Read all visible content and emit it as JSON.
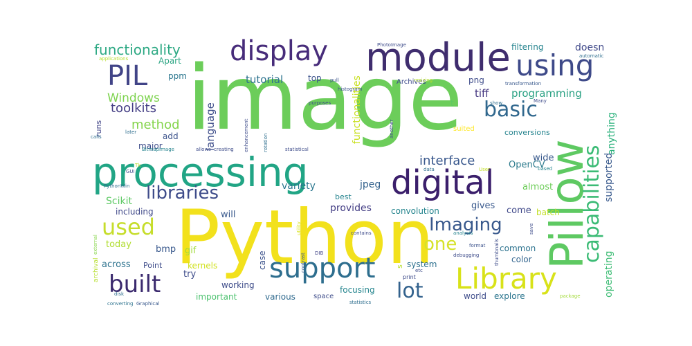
{
  "words": [
    {
      "text": "image",
      "color": "#6ccd5a"
    },
    {
      "text": "Python",
      "color": "#f2e11c"
    },
    {
      "text": "processing",
      "color": "#21a585"
    },
    {
      "text": "module",
      "color": "#3f2d6e"
    },
    {
      "text": "Pillow",
      "color": "#5ec962"
    },
    {
      "text": "digital",
      "color": "#3b1f6b"
    },
    {
      "text": "using",
      "color": "#3e4a89"
    },
    {
      "text": "display",
      "color": "#472c7a"
    },
    {
      "text": "support",
      "color": "#2e6e8e"
    },
    {
      "text": "Library",
      "color": "#d8e219"
    },
    {
      "text": "PIL",
      "color": "#414487"
    },
    {
      "text": "capabilities",
      "color": "#3bbb75"
    },
    {
      "text": "built",
      "color": "#3b2a6e"
    },
    {
      "text": "used",
      "color": "#c6dd2b"
    },
    {
      "text": "libraries",
      "color": "#3e4c8a"
    },
    {
      "text": "basic",
      "color": "#31688e"
    },
    {
      "text": "lot",
      "color": "#33628d"
    },
    {
      "text": "Imaging",
      "color": "#38588c"
    },
    {
      "text": "one",
      "color": "#d6e22b"
    },
    {
      "text": "functionality",
      "color": "#2ea984"
    },
    {
      "text": "interface",
      "color": "#38578c"
    },
    {
      "text": "method",
      "color": "#84d44b"
    },
    {
      "text": "toolkits",
      "color": "#433d84"
    },
    {
      "text": "Windows",
      "color": "#7ed34f"
    },
    {
      "text": "tutorial",
      "color": "#2c728e"
    },
    {
      "text": "language",
      "color": "#3d4d8a"
    },
    {
      "text": "programming",
      "color": "#2aa183"
    },
    {
      "text": "tiff",
      "color": "#453781"
    },
    {
      "text": "doesn",
      "color": "#3f4889"
    },
    {
      "text": "anything",
      "color": "#2db27d"
    },
    {
      "text": "supported",
      "color": "#38598c"
    },
    {
      "text": "operating",
      "color": "#3dbc74"
    },
    {
      "text": "functionalities",
      "color": "#c8e020"
    },
    {
      "text": "filtering",
      "color": "#25838e"
    },
    {
      "text": "conversions",
      "color": "#25838e"
    },
    {
      "text": "OpenCV",
      "color": "#2e7c8e"
    },
    {
      "text": "wide",
      "color": "#38598c"
    },
    {
      "text": "almost",
      "color": "#6dcd59"
    },
    {
      "text": "provides",
      "color": "#433d84"
    },
    {
      "text": "Scikit",
      "color": "#5cc863"
    },
    {
      "text": "variety",
      "color": "#2a768e"
    },
    {
      "text": "jpeg",
      "color": "#33628d"
    },
    {
      "text": "gives",
      "color": "#38588c"
    },
    {
      "text": "come",
      "color": "#3f4889"
    },
    {
      "text": "batch",
      "color": "#c2df23"
    },
    {
      "text": "convolution",
      "color": "#25858e"
    },
    {
      "text": "best",
      "color": "#25838e"
    },
    {
      "text": "will",
      "color": "#38588c"
    },
    {
      "text": "including",
      "color": "#3f4889"
    },
    {
      "text": "today",
      "color": "#b0dd2f"
    },
    {
      "text": "bmp",
      "color": "#38588c"
    },
    {
      "text": "gif",
      "color": "#a0da39"
    },
    {
      "text": "across",
      "color": "#2c728e"
    },
    {
      "text": "Point",
      "color": "#3e4c8a"
    },
    {
      "text": "kernels",
      "color": "#d0e11c"
    },
    {
      "text": "case",
      "color": "#3b528b"
    },
    {
      "text": "system",
      "color": "#2d708e"
    },
    {
      "text": "common",
      "color": "#2c728e"
    },
    {
      "text": "color",
      "color": "#32648e"
    },
    {
      "text": "try",
      "color": "#3e4c8a"
    },
    {
      "text": "working",
      "color": "#3e4c8a"
    },
    {
      "text": "important",
      "color": "#4ac16d"
    },
    {
      "text": "various",
      "color": "#306a8e"
    },
    {
      "text": "focusing",
      "color": "#25858e"
    },
    {
      "text": "world",
      "color": "#3e4c8a"
    },
    {
      "text": "explore",
      "color": "#2b758e"
    },
    {
      "text": "space",
      "color": "#3e4c8a"
    },
    {
      "text": "major",
      "color": "#3e4c8a"
    },
    {
      "text": "add",
      "color": "#3b528b"
    },
    {
      "text": "runs",
      "color": "#414487"
    },
    {
      "text": "ppm",
      "color": "#2a768e"
    },
    {
      "text": "Apart",
      "color": "#2ca583"
    },
    {
      "text": "top",
      "color": "#3b528b"
    },
    {
      "text": "png",
      "color": "#3e4c8a"
    },
    {
      "text": "Archives",
      "color": "#3e4c8a"
    },
    {
      "text": "t",
      "color": "#5ec962"
    },
    {
      "text": "suited",
      "color": "#fde725"
    },
    {
      "text": "s",
      "color": "#b5de2b"
    },
    {
      "text": "archival",
      "color": "#b5de2b"
    },
    {
      "text": "converting",
      "color": "#2c728e"
    },
    {
      "text": "Graphical",
      "color": "#38588c"
    },
    {
      "text": "statistics",
      "color": "#2e6e8e"
    },
    {
      "text": "package",
      "color": "#a2da37"
    },
    {
      "text": "print",
      "color": "#3e4c8a"
    },
    {
      "text": "etc",
      "color": "#3e4c8a"
    },
    {
      "text": "DIB",
      "color": "#414487"
    },
    {
      "text": "contrast",
      "color": "#38588c"
    },
    {
      "text": "utility",
      "color": "#d8e219"
    },
    {
      "text": "disk",
      "color": "#2e6e8e"
    },
    {
      "text": "external",
      "color": "#86d549"
    },
    {
      "text": "format",
      "color": "#3b528b"
    },
    {
      "text": "debugging",
      "color": "#3e4c8a"
    },
    {
      "text": "thumbnails",
      "color": "#3e4c8a"
    },
    {
      "text": "save",
      "color": "#3e4c8a"
    },
    {
      "text": "contains",
      "color": "#3e4c8a"
    },
    {
      "text": "analysis",
      "color": "#25838e"
    },
    {
      "text": "data",
      "color": "#2e6e8e"
    },
    {
      "text": "User",
      "color": "#c2df23"
    },
    {
      "text": "based",
      "color": "#25858e"
    },
    {
      "text": "PhotoImage",
      "color": "#3e4c8a"
    },
    {
      "text": "pull",
      "color": "#3b528b"
    },
    {
      "text": "histogram",
      "color": "#3b528b"
    },
    {
      "text": "resizing",
      "color": "#b5de2b"
    },
    {
      "text": "transformation",
      "color": "#38588c"
    },
    {
      "text": "automatic",
      "color": "#2e6e8e"
    },
    {
      "text": "Many",
      "color": "#3e4c8a"
    },
    {
      "text": "show",
      "color": "#2e6e8e"
    },
    {
      "text": "purposes",
      "color": "#3e4c8a"
    },
    {
      "text": "enhancement",
      "color": "#3e4c8a"
    },
    {
      "text": "another",
      "color": "#3e4c8a"
    },
    {
      "text": "rotation",
      "color": "#2e6e8e"
    },
    {
      "text": "statistical",
      "color": "#3e4c8a"
    },
    {
      "text": "creating",
      "color": "#3e4c8a"
    },
    {
      "text": "allows",
      "color": "#3e4c8a"
    },
    {
      "text": "BitmapImage",
      "color": "#25838e"
    },
    {
      "text": "later",
      "color": "#2e6e8e"
    },
    {
      "text": "calls",
      "color": "#2e6e8e"
    },
    {
      "text": "GUI",
      "color": "#3e4c8a"
    },
    {
      "text": "Tk",
      "color": "#b5de2b"
    },
    {
      "text": "PythonWin",
      "color": "#2e6e8e"
    },
    {
      "text": "applications",
      "color": "#b5de2b"
    }
  ]
}
